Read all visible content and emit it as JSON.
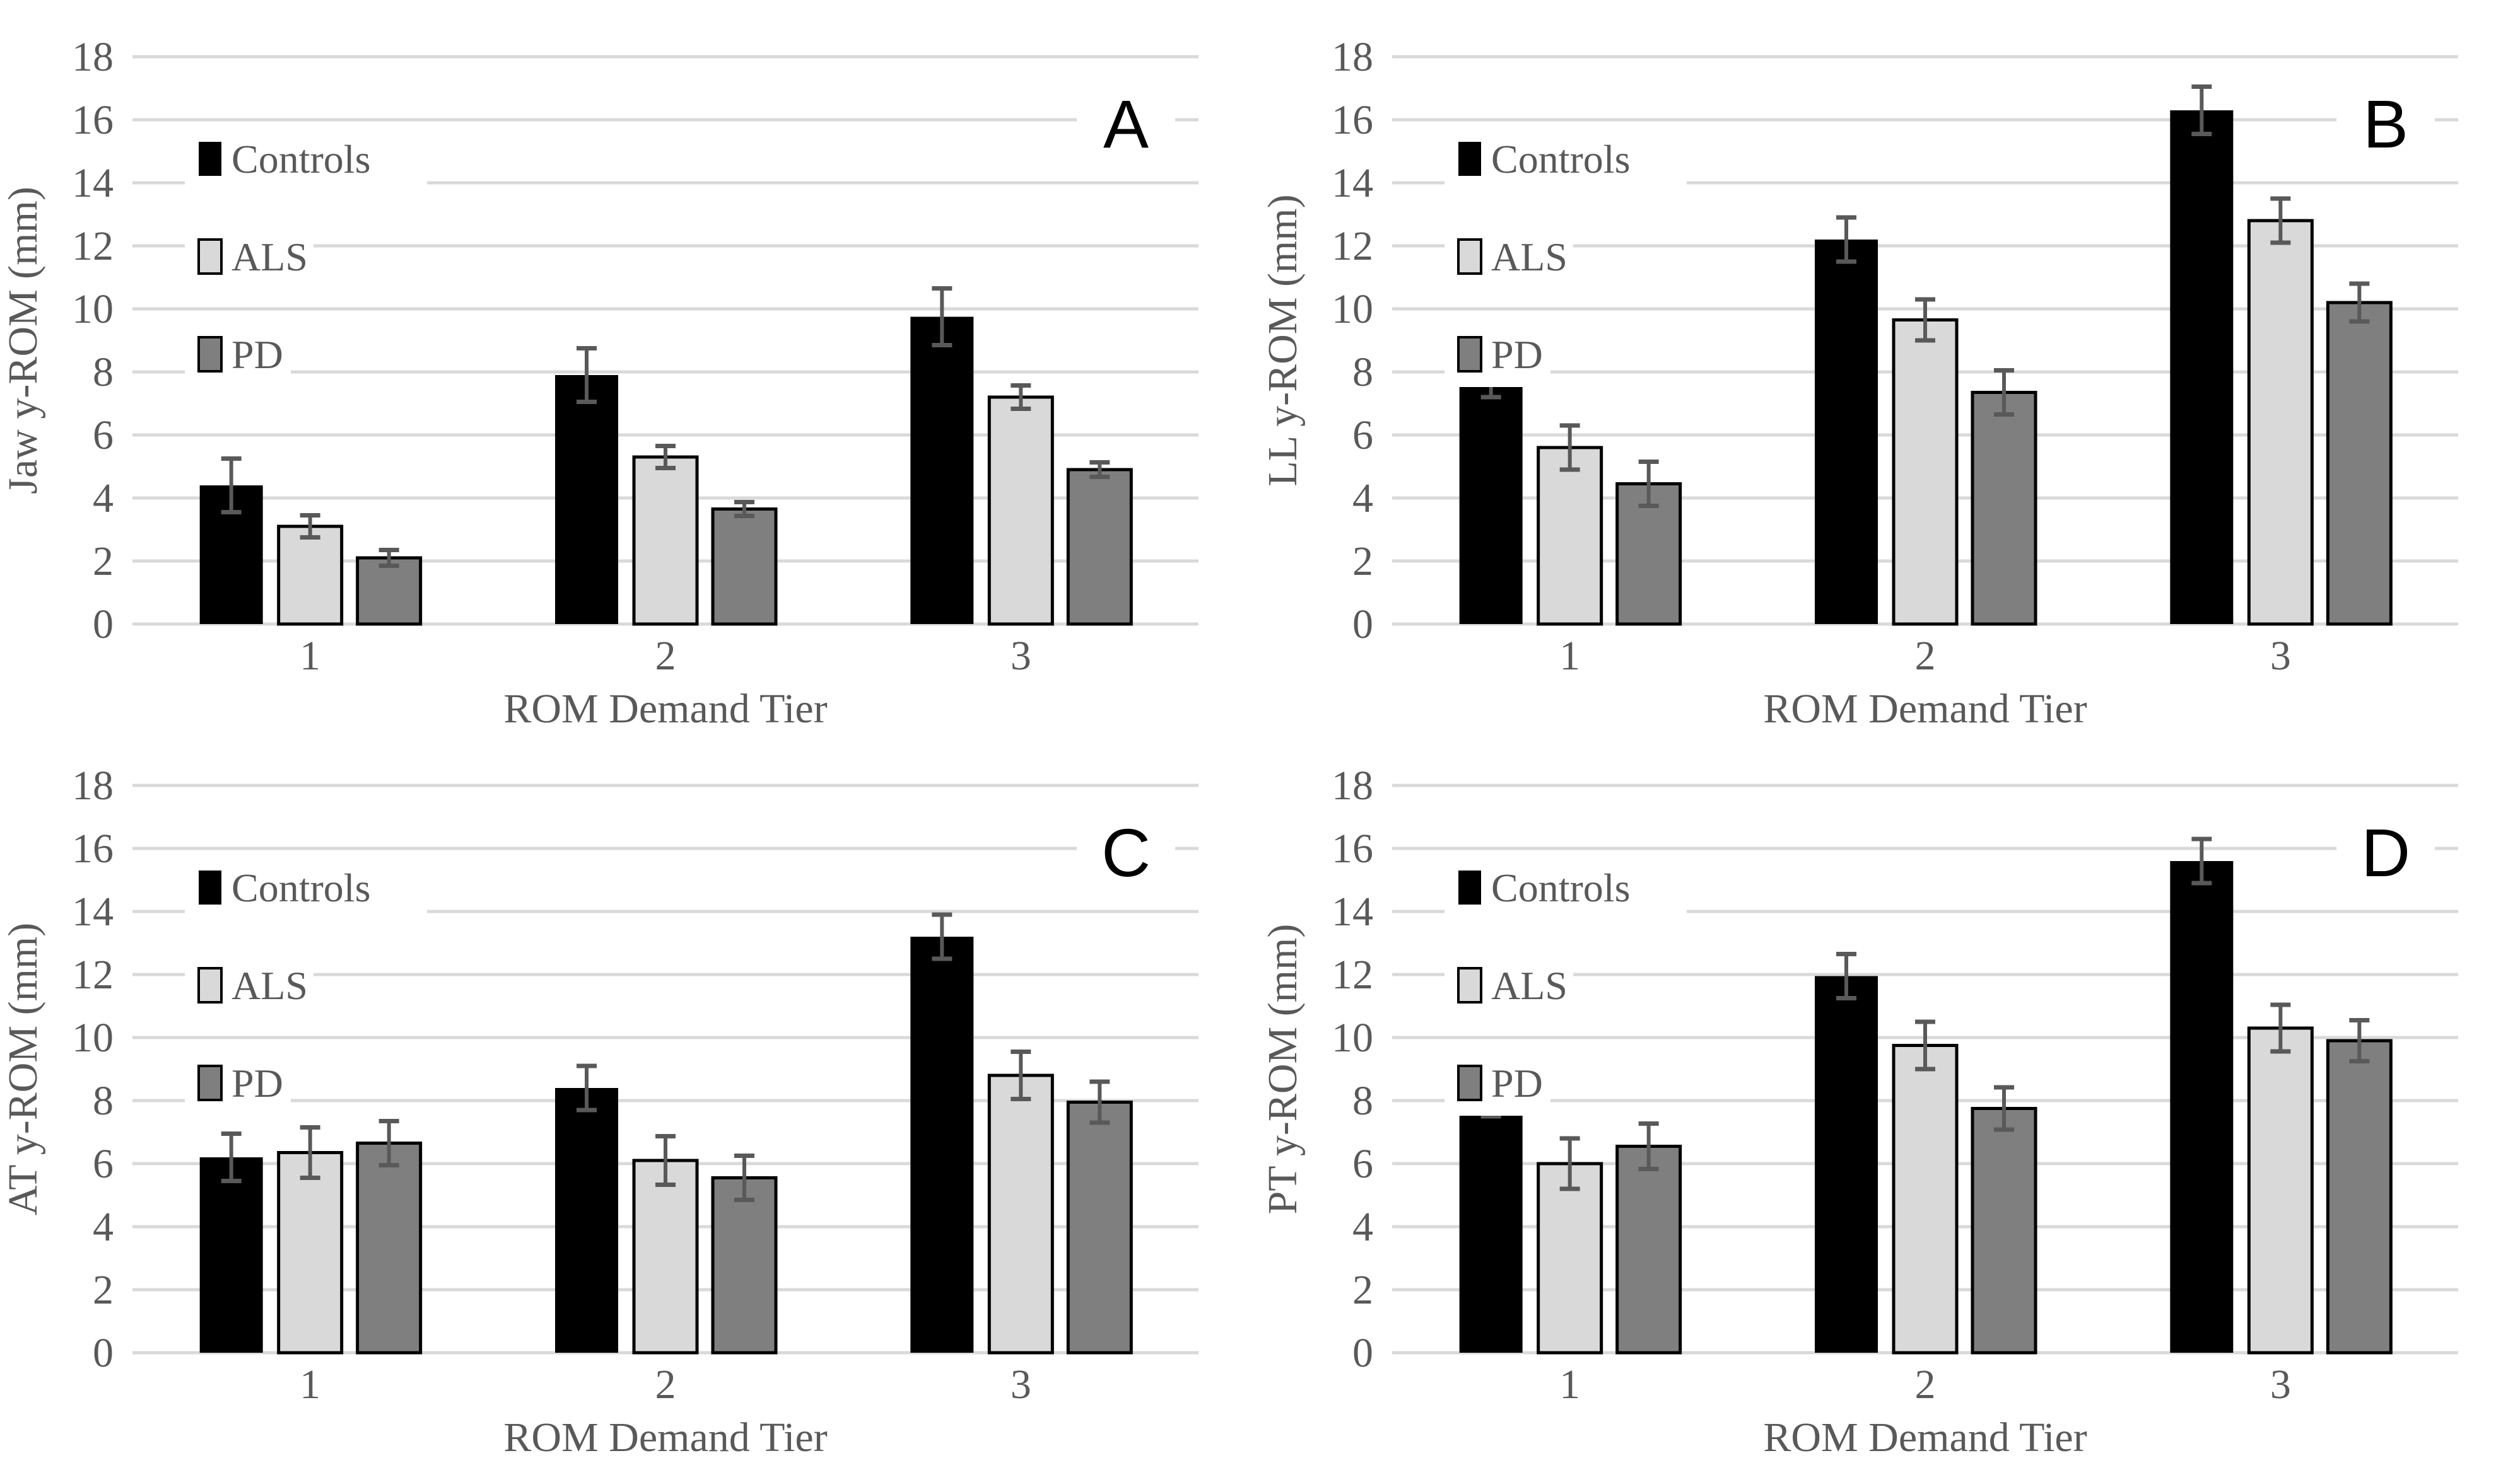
{
  "page": {
    "background": "#ffffff"
  },
  "colors": {
    "grid": "#d9d9d9",
    "axis_text": "#595959",
    "error_bar": "#595959",
    "panel_letter": "#000000",
    "controls_fill": "#000000",
    "als_fill": "#d9d9d9",
    "pd_fill": "#7f7f7f",
    "bar_border": "#000000"
  },
  "legend": {
    "items": [
      {
        "label": "Controls",
        "color": "#000000"
      },
      {
        "label": "ALS",
        "color": "#d9d9d9"
      },
      {
        "label": "PD",
        "color": "#7f7f7f"
      }
    ]
  },
  "chart_data": [
    {
      "panel_letter": "A",
      "type": "bar",
      "title": "",
      "ylabel": "Jaw y-ROM (mm)",
      "xlabel": "ROM Demand Tier",
      "categories": [
        "1",
        "2",
        "3"
      ],
      "ylim": [
        0,
        18
      ],
      "yticks": [
        0,
        2,
        4,
        6,
        8,
        10,
        12,
        14,
        16,
        18
      ],
      "grid": true,
      "legend_position": "top-left-inside",
      "series": [
        {
          "name": "Controls",
          "values": [
            4.4,
            7.9,
            9.75
          ],
          "errors": [
            0.85,
            0.85,
            0.9
          ]
        },
        {
          "name": "ALS",
          "values": [
            3.1,
            5.3,
            7.2
          ],
          "errors": [
            0.35,
            0.35,
            0.37
          ]
        },
        {
          "name": "PD",
          "values": [
            2.1,
            3.65,
            4.9
          ],
          "errors": [
            0.25,
            0.22,
            0.23
          ]
        }
      ]
    },
    {
      "panel_letter": "B",
      "type": "bar",
      "title": "",
      "ylabel": "LL y-ROM (mm)",
      "xlabel": "ROM Demand Tier",
      "categories": [
        "1",
        "2",
        "3"
      ],
      "ylim": [
        0,
        18
      ],
      "yticks": [
        0,
        2,
        4,
        6,
        8,
        10,
        12,
        14,
        16,
        18
      ],
      "grid": true,
      "legend_position": "top-left-inside",
      "series": [
        {
          "name": "Controls",
          "values": [
            7.9,
            12.2,
            16.3
          ],
          "errors": [
            0.7,
            0.7,
            0.75
          ]
        },
        {
          "name": "ALS",
          "values": [
            5.6,
            9.65,
            12.8
          ],
          "errors": [
            0.7,
            0.65,
            0.7
          ]
        },
        {
          "name": "PD",
          "values": [
            4.45,
            7.35,
            10.2
          ],
          "errors": [
            0.7,
            0.7,
            0.6
          ]
        }
      ]
    },
    {
      "panel_letter": "C",
      "type": "bar",
      "title": "",
      "ylabel": "AT y-ROM (mm)",
      "xlabel": "ROM Demand Tier",
      "categories": [
        "1",
        "2",
        "3"
      ],
      "ylim": [
        0,
        18
      ],
      "yticks": [
        0,
        2,
        4,
        6,
        8,
        10,
        12,
        14,
        16,
        18
      ],
      "grid": true,
      "legend_position": "top-left-inside",
      "series": [
        {
          "name": "Controls",
          "values": [
            6.2,
            8.4,
            13.2
          ],
          "errors": [
            0.75,
            0.7,
            0.7
          ]
        },
        {
          "name": "ALS",
          "values": [
            6.35,
            6.1,
            8.8
          ],
          "errors": [
            0.8,
            0.77,
            0.75
          ]
        },
        {
          "name": "PD",
          "values": [
            6.65,
            5.55,
            7.95
          ],
          "errors": [
            0.7,
            0.7,
            0.65
          ]
        }
      ]
    },
    {
      "panel_letter": "D",
      "type": "bar",
      "title": "",
      "ylabel": "PT y-ROM (mm)",
      "xlabel": "ROM Demand Tier",
      "categories": [
        "1",
        "2",
        "3"
      ],
      "ylim": [
        0,
        18
      ],
      "yticks": [
        0,
        2,
        4,
        6,
        8,
        10,
        12,
        14,
        16,
        18
      ],
      "grid": true,
      "legend_position": "top-left-inside",
      "series": [
        {
          "name": "Controls",
          "values": [
            8.25,
            11.95,
            15.6
          ],
          "errors": [
            0.75,
            0.7,
            0.7
          ]
        },
        {
          "name": "ALS",
          "values": [
            6.0,
            9.75,
            10.3
          ],
          "errors": [
            0.8,
            0.75,
            0.74
          ]
        },
        {
          "name": "PD",
          "values": [
            6.55,
            7.75,
            9.9
          ],
          "errors": [
            0.72,
            0.67,
            0.65
          ]
        }
      ]
    }
  ]
}
